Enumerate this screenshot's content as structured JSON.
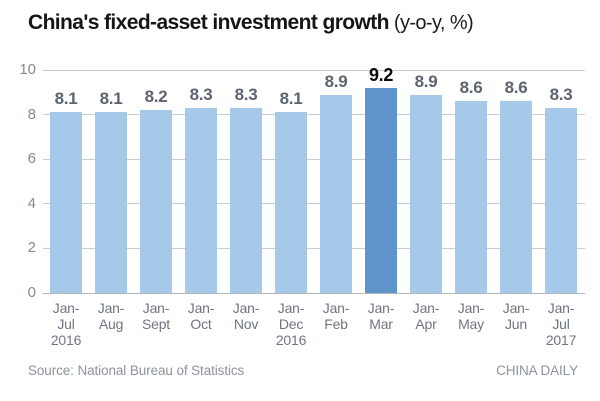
{
  "title": {
    "main": "China's fixed-asset investment growth",
    "suffix": "(y-o-y, %)"
  },
  "chart_data": {
    "type": "bar",
    "categories": [
      "Jan-Jul 2016",
      "Jan-Aug",
      "Jan-Sept",
      "Jan-Oct",
      "Jan-Nov",
      "Jan-Dec 2016",
      "Jan-Feb",
      "Jan-Mar",
      "Jan-Apr",
      "Jan-May",
      "Jan-Jun",
      "Jan-Jul 2017"
    ],
    "category_lines": [
      [
        "Jan-",
        "Jul",
        "2016"
      ],
      [
        "Jan-",
        "Aug"
      ],
      [
        "Jan-",
        "Sept"
      ],
      [
        "Jan-",
        "Oct"
      ],
      [
        "Jan-",
        "Nov"
      ],
      [
        "Jan-",
        "Dec",
        "2016"
      ],
      [
        "Jan-",
        "Feb"
      ],
      [
        "Jan-",
        "Mar"
      ],
      [
        "Jan-",
        "Apr"
      ],
      [
        "Jan-",
        "May"
      ],
      [
        "Jan-",
        "Jun"
      ],
      [
        "Jan-",
        "Jul",
        "2017"
      ]
    ],
    "values": [
      8.1,
      8.1,
      8.2,
      8.3,
      8.3,
      8.1,
      8.9,
      9.2,
      8.9,
      8.6,
      8.6,
      8.3
    ],
    "value_labels": [
      "8.1",
      "8.1",
      "8.2",
      "8.3",
      "8.3",
      "8.1",
      "8.9",
      "9.2",
      "8.9",
      "8.6",
      "8.6",
      "8.3"
    ],
    "highlight_index": 7,
    "title": "China's fixed-asset investment growth (y-o-y, %)",
    "xlabel": "",
    "ylabel": "",
    "ylim": [
      0,
      10
    ],
    "yticks": [
      0,
      2,
      4,
      6,
      8,
      10
    ],
    "grid": true,
    "legend": "none",
    "colors": {
      "bar": "#a7c9e9",
      "bar_highlight": "#5e93cb",
      "value_label": "#5d646e",
      "value_label_highlight": "#0b0b0b"
    }
  },
  "footer": {
    "source": "Source: National Bureau of Statistics",
    "credit": "CHINA DAILY"
  }
}
